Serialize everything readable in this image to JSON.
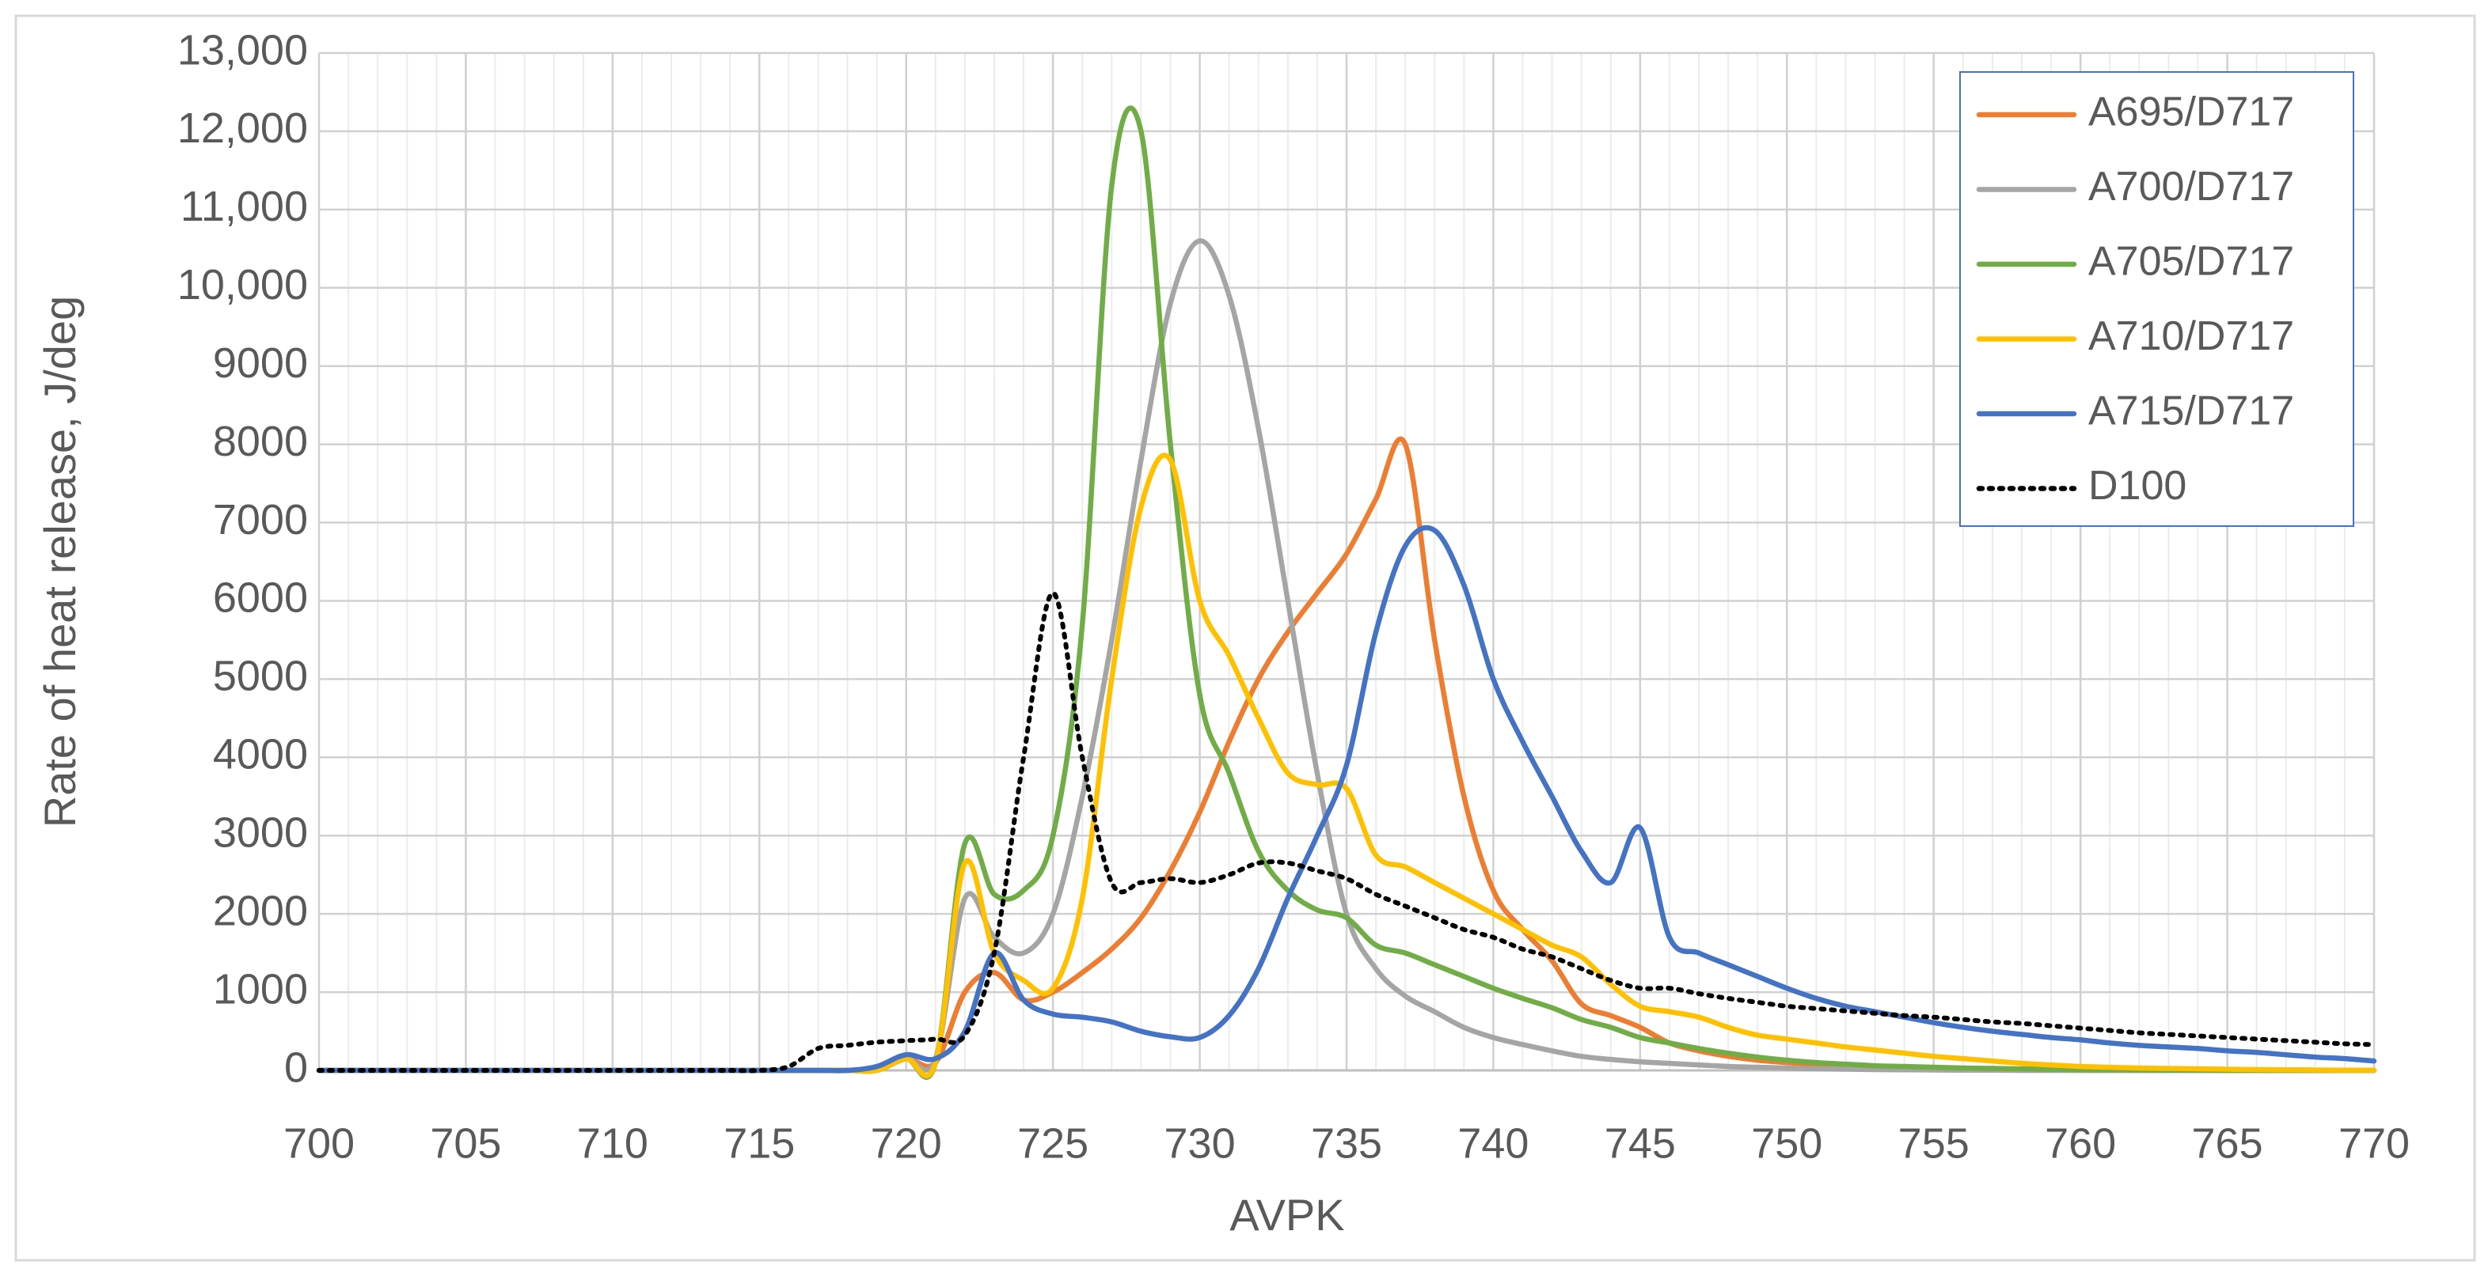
{
  "chart_data": {
    "type": "line",
    "x_label": "AVPK",
    "y_label": "Rate of heat release, J/deg",
    "x": [
      700,
      701,
      702,
      703,
      704,
      705,
      706,
      707,
      708,
      709,
      710,
      711,
      712,
      713,
      714,
      715,
      716,
      717,
      718,
      719,
      720,
      721,
      722,
      723,
      724,
      725,
      726,
      727,
      728,
      729,
      730,
      731,
      732,
      733,
      734,
      735,
      736,
      737,
      738,
      739,
      740,
      741,
      742,
      743,
      744,
      745,
      746,
      747,
      748,
      749,
      750,
      751,
      752,
      753,
      754,
      755,
      756,
      757,
      758,
      759,
      760,
      761,
      762,
      763,
      764,
      765,
      766,
      767,
      768,
      769,
      770
    ],
    "xlim": [
      700,
      770
    ],
    "xticks": [
      700,
      705,
      710,
      715,
      720,
      725,
      730,
      735,
      740,
      745,
      750,
      755,
      760,
      765,
      770
    ],
    "ylim": [
      0,
      13000
    ],
    "yticks": [
      0,
      1000,
      2000,
      3000,
      4000,
      5000,
      6000,
      7000,
      8000,
      9000,
      {
        "value": 10000,
        "label": "10,000"
      },
      {
        "value": 11000,
        "label": "11,000"
      },
      {
        "value": 12000,
        "label": "12,000"
      },
      {
        "value": 13000,
        "label": "13,000"
      }
    ],
    "grid": true,
    "minor_grid": true,
    "legend": "upper right",
    "series": [
      {
        "name": "A695/D717",
        "color": "#ed7d31",
        "dash": "solid",
        "values": [
          0,
          0,
          0,
          0,
          0,
          0,
          0,
          0,
          0,
          0,
          0,
          0,
          0,
          0,
          0,
          0,
          0,
          0,
          0,
          0,
          150,
          100,
          1000,
          1250,
          900,
          1000,
          1250,
          1550,
          1950,
          2550,
          3300,
          4200,
          5000,
          5600,
          6100,
          6600,
          7300,
          8000,
          5500,
          3500,
          2300,
          1800,
          1400,
          850,
          700,
          550,
          350,
          250,
          180,
          130,
          100,
          80,
          60,
          50,
          40,
          30,
          20,
          15,
          10,
          5,
          0,
          0,
          0,
          0,
          0,
          0,
          0,
          0,
          0,
          0,
          0
        ]
      },
      {
        "name": "A700/D717",
        "color": "#a5a5a5",
        "dash": "solid",
        "values": [
          0,
          0,
          0,
          0,
          0,
          0,
          0,
          0,
          0,
          0,
          0,
          0,
          0,
          0,
          0,
          0,
          0,
          0,
          0,
          0,
          150,
          150,
          2200,
          1700,
          1500,
          2000,
          3500,
          5500,
          7800,
          9800,
          10600,
          9900,
          8200,
          6000,
          3800,
          2000,
          1300,
          950,
          750,
          550,
          420,
          330,
          250,
          180,
          140,
          110,
          90,
          70,
          50,
          40,
          30,
          20,
          15,
          10,
          8,
          5,
          3,
          2,
          0,
          0,
          0,
          0,
          0,
          0,
          0,
          0,
          0,
          0,
          0,
          0,
          0
        ]
      },
      {
        "name": "A705/D717",
        "color": "#70ad47",
        "dash": "solid",
        "values": [
          0,
          0,
          0,
          0,
          0,
          0,
          0,
          0,
          0,
          0,
          0,
          0,
          0,
          0,
          0,
          0,
          0,
          0,
          0,
          0,
          150,
          100,
          2900,
          2250,
          2300,
          3000,
          5700,
          11300,
          12000,
          8000,
          4800,
          3800,
          2800,
          2300,
          2050,
          1950,
          1600,
          1500,
          1350,
          1200,
          1050,
          920,
          800,
          650,
          550,
          420,
          350,
          280,
          220,
          170,
          130,
          100,
          80,
          60,
          50,
          40,
          30,
          25,
          20,
          15,
          10,
          8,
          5,
          3,
          2,
          0,
          0,
          0,
          0,
          0,
          0
        ]
      },
      {
        "name": "A710/D717",
        "color": "#ffc000",
        "dash": "solid",
        "values": [
          0,
          0,
          0,
          0,
          0,
          0,
          0,
          0,
          0,
          0,
          0,
          0,
          0,
          0,
          0,
          0,
          0,
          0,
          0,
          0,
          150,
          100,
          2650,
          1500,
          1150,
          1050,
          2200,
          5000,
          7200,
          7800,
          6000,
          5300,
          4500,
          3800,
          3650,
          3600,
          2750,
          2600,
          2400,
          2200,
          2000,
          1800,
          1600,
          1450,
          1100,
          820,
          750,
          680,
          550,
          450,
          400,
          350,
          300,
          260,
          220,
          180,
          150,
          120,
          90,
          70,
          50,
          40,
          30,
          25,
          20,
          15,
          10,
          8,
          5,
          3,
          2
        ]
      },
      {
        "name": "A715/D717",
        "color": "#4472c4",
        "dash": "solid",
        "values": [
          0,
          0,
          0,
          0,
          0,
          0,
          0,
          0,
          0,
          0,
          0,
          0,
          0,
          0,
          0,
          0,
          0,
          0,
          0,
          50,
          200,
          150,
          500,
          1500,
          900,
          720,
          680,
          620,
          500,
          430,
          420,
          700,
          1300,
          2200,
          3000,
          3900,
          5600,
          6700,
          6900,
          6200,
          5000,
          4200,
          3500,
          2800,
          2400,
          3100,
          1700,
          1500,
          1350,
          1200,
          1050,
          920,
          820,
          750,
          680,
          610,
          550,
          500,
          460,
          420,
          390,
          350,
          320,
          300,
          280,
          250,
          230,
          200,
          170,
          150,
          120
        ]
      },
      {
        "name": "D100",
        "color": "#000000",
        "dash": "dotted",
        "values": [
          0,
          0,
          0,
          0,
          0,
          0,
          0,
          0,
          0,
          0,
          0,
          0,
          0,
          0,
          0,
          0,
          50,
          280,
          320,
          360,
          380,
          400,
          450,
          1500,
          4000,
          6100,
          4000,
          2400,
          2400,
          2450,
          2400,
          2500,
          2650,
          2650,
          2550,
          2450,
          2250,
          2100,
          1950,
          1800,
          1700,
          1550,
          1450,
          1300,
          1150,
          1050,
          1050,
          980,
          920,
          870,
          820,
          790,
          760,
          730,
          700,
          680,
          650,
          620,
          600,
          570,
          540,
          510,
          480,
          460,
          440,
          420,
          400,
          380,
          360,
          340,
          330
        ]
      }
    ]
  }
}
